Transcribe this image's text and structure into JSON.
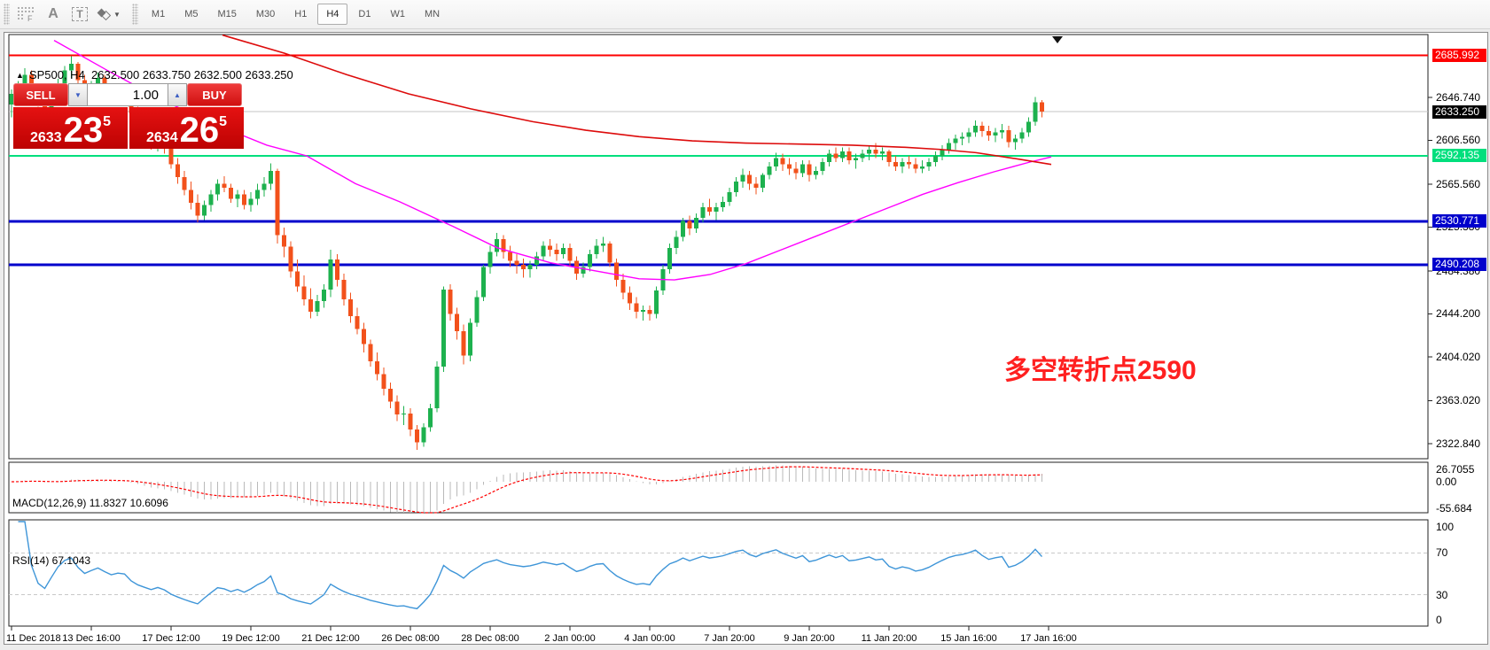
{
  "toolbar": {
    "tools": [
      {
        "name": "figures-grid",
        "letter": "F"
      },
      {
        "name": "label-a",
        "letter": "A"
      },
      {
        "name": "textbox-t",
        "letter": "T"
      },
      {
        "name": "draw-objects",
        "letter": ""
      }
    ],
    "timeframes": [
      "M1",
      "M5",
      "M15",
      "M30",
      "H1",
      "H4",
      "D1",
      "W1",
      "MN"
    ],
    "active_timeframe": "H4"
  },
  "chart": {
    "marker": "▲",
    "symbol": "SP500, H4",
    "ohlc": "2632.500 2633.750 2632.500 2633.250",
    "end_marker": "▼"
  },
  "trade_panel": {
    "sell_label": "SELL",
    "buy_label": "BUY",
    "volume": "1.00",
    "spin_down": "▼",
    "spin_up": "▲",
    "bid_prefix": "2633",
    "bid_big": "23",
    "bid_sup": "5",
    "ask_prefix": "2634",
    "ask_big": "26",
    "ask_sup": "5"
  },
  "annotation": {
    "text": "多空转折点2590",
    "color": "#ff2020"
  },
  "indicators": {
    "macd_label": "MACD(12,26,9) 11.8327 10.6096",
    "rsi_label": "RSI(14) 67.1043",
    "macd_axis": [
      {
        "label": "26.7055",
        "value": 26.7055
      },
      {
        "label": "0.00",
        "value": 0
      },
      {
        "label": "-55.684",
        "value": -55.684
      }
    ],
    "rsi_axis": [
      {
        "label": "100",
        "value": 100
      },
      {
        "label": "70",
        "value": 70
      },
      {
        "label": "30",
        "value": 30
      },
      {
        "label": "0",
        "value": 0
      }
    ],
    "rsi_levels": [
      70,
      30
    ]
  },
  "chart_data": {
    "type": "candlestick",
    "symbol": "SP500",
    "timeframe": "H4",
    "ylim": [
      2309,
      2705
    ],
    "y_ticks": [
      {
        "label": "2646.740",
        "price": 2646.74
      },
      {
        "label": "2606.560",
        "price": 2606.56
      },
      {
        "label": "2565.560",
        "price": 2565.56
      },
      {
        "label": "2525.380",
        "price": 2525.38
      },
      {
        "label": "2484.380",
        "price": 2484.38
      },
      {
        "label": "2444.200",
        "price": 2444.2
      },
      {
        "label": "2404.020",
        "price": 2404.02
      },
      {
        "label": "2363.020",
        "price": 2363.02
      },
      {
        "label": "2322.840",
        "price": 2322.84
      }
    ],
    "badges": [
      {
        "label": "2685.992",
        "price": 2685.992,
        "bg": "#fe0000",
        "fg": "#ffffff"
      },
      {
        "label": "2633.250",
        "price": 2633.25,
        "bg": "#000000",
        "fg": "#ffffff"
      },
      {
        "label": "2592.135",
        "price": 2592.135,
        "bg": "#00df7d",
        "fg": "#ffffff"
      },
      {
        "label": "2530.771",
        "price": 2530.771,
        "bg": "#0000cc",
        "fg": "#ffffff"
      },
      {
        "label": "2490.208",
        "price": 2490.208,
        "bg": "#0000cc",
        "fg": "#ffffff"
      }
    ],
    "hlines": [
      {
        "price": 2685.992,
        "color": "#fe0000",
        "width": 2
      },
      {
        "price": 2592.135,
        "color": "#00df7d",
        "width": 2
      },
      {
        "price": 2530.771,
        "color": "#0000cc",
        "width": 3
      },
      {
        "price": 2490.208,
        "color": "#0000cc",
        "width": 3
      }
    ],
    "current_price_line": {
      "price": 2633.25,
      "color": "#c4c4c4",
      "width": 1
    },
    "time_labels": [
      "11 Dec 2018",
      "13 Dec 16:00",
      "17 Dec 12:00",
      "19 Dec 12:00",
      "21 Dec 12:00",
      "26 Dec 08:00",
      "28 Dec 08:00",
      "2 Jan 00:00",
      "4 Jan 00:00",
      "7 Jan 20:00",
      "9 Jan 20:00",
      "11 Jan 20:00",
      "15 Jan 16:00",
      "17 Jan 16:00"
    ],
    "colors": {
      "up": "#1db14e",
      "down": "#f2511b",
      "ma_red": "#dd0b0b",
      "ma_magenta": "#ff00ff",
      "rsi": "#3e95d8",
      "macd_hist": "#b9b9b9",
      "macd_signal": "#ff0000"
    },
    "ma_red": [
      [
        250,
        2705
      ],
      [
        320,
        2688
      ],
      [
        390,
        2668
      ],
      [
        460,
        2650
      ],
      [
        530,
        2636
      ],
      [
        600,
        2624
      ],
      [
        660,
        2616
      ],
      [
        720,
        2610
      ],
      [
        780,
        2606
      ],
      [
        840,
        2604
      ],
      [
        900,
        2603
      ],
      [
        960,
        2602
      ],
      [
        1020,
        2600
      ],
      [
        1060,
        2598
      ],
      [
        1100,
        2595
      ],
      [
        1140,
        2590
      ],
      [
        1185,
        2584
      ]
    ],
    "ma_magenta": [
      [
        60,
        2700
      ],
      [
        120,
        2672
      ],
      [
        180,
        2645
      ],
      [
        240,
        2622
      ],
      [
        300,
        2602
      ],
      [
        345,
        2592
      ],
      [
        400,
        2566
      ],
      [
        450,
        2549
      ],
      [
        510,
        2526
      ],
      [
        560,
        2506
      ],
      [
        620,
        2492
      ],
      [
        680,
        2483
      ],
      [
        720,
        2477
      ],
      [
        760,
        2476
      ],
      [
        800,
        2481
      ],
      [
        840,
        2491
      ],
      [
        880,
        2504
      ],
      [
        920,
        2517
      ],
      [
        960,
        2530
      ],
      [
        1000,
        2543
      ],
      [
        1040,
        2556
      ],
      [
        1080,
        2567
      ],
      [
        1120,
        2577
      ],
      [
        1160,
        2586
      ],
      [
        1185,
        2591
      ]
    ],
    "candles": [
      [
        2640,
        2654,
        2628,
        2650
      ],
      [
        2650,
        2662,
        2644,
        2658
      ],
      [
        2658,
        2674,
        2652,
        2668
      ],
      [
        2668,
        2672,
        2650,
        2655
      ],
      [
        2655,
        2660,
        2638,
        2642
      ],
      [
        2642,
        2648,
        2630,
        2636
      ],
      [
        2636,
        2650,
        2632,
        2646
      ],
      [
        2646,
        2664,
        2642,
        2660
      ],
      [
        2660,
        2676,
        2655,
        2672
      ],
      [
        2672,
        2685,
        2665,
        2678
      ],
      [
        2678,
        2680,
        2658,
        2663
      ],
      [
        2663,
        2668,
        2648,
        2651
      ],
      [
        2651,
        2662,
        2645,
        2658
      ],
      [
        2658,
        2670,
        2652,
        2665
      ],
      [
        2665,
        2668,
        2652,
        2656
      ],
      [
        2656,
        2660,
        2644,
        2648
      ],
      [
        2648,
        2656,
        2642,
        2652
      ],
      [
        2652,
        2658,
        2645,
        2650
      ],
      [
        2650,
        2652,
        2628,
        2632
      ],
      [
        2632,
        2638,
        2615,
        2620
      ],
      [
        2620,
        2628,
        2608,
        2612
      ],
      [
        2612,
        2618,
        2598,
        2604
      ],
      [
        2604,
        2612,
        2596,
        2608
      ],
      [
        2608,
        2612,
        2594,
        2600
      ],
      [
        2600,
        2604,
        2580,
        2584
      ],
      [
        2584,
        2590,
        2566,
        2572
      ],
      [
        2572,
        2578,
        2555,
        2560
      ],
      [
        2560,
        2568,
        2542,
        2548
      ],
      [
        2548,
        2556,
        2530,
        2536
      ],
      [
        2536,
        2550,
        2532,
        2546
      ],
      [
        2546,
        2560,
        2540,
        2556
      ],
      [
        2556,
        2570,
        2550,
        2566
      ],
      [
        2566,
        2573,
        2558,
        2562
      ],
      [
        2562,
        2566,
        2548,
        2552
      ],
      [
        2552,
        2560,
        2544,
        2556
      ],
      [
        2556,
        2560,
        2542,
        2546
      ],
      [
        2546,
        2558,
        2540,
        2552
      ],
      [
        2552,
        2566,
        2546,
        2560
      ],
      [
        2560,
        2572,
        2554,
        2566
      ],
      [
        2566,
        2585,
        2560,
        2578
      ],
      [
        2578,
        2580,
        2510,
        2518
      ],
      [
        2518,
        2525,
        2497,
        2507
      ],
      [
        2507,
        2512,
        2478,
        2484
      ],
      [
        2484,
        2495,
        2465,
        2470
      ],
      [
        2470,
        2480,
        2452,
        2458
      ],
      [
        2458,
        2468,
        2440,
        2446
      ],
      [
        2446,
        2462,
        2442,
        2456
      ],
      [
        2456,
        2472,
        2450,
        2467
      ],
      [
        2467,
        2504,
        2460,
        2495
      ],
      [
        2495,
        2500,
        2470,
        2476
      ],
      [
        2476,
        2482,
        2452,
        2458
      ],
      [
        2458,
        2464,
        2436,
        2442
      ],
      [
        2442,
        2450,
        2425,
        2430
      ],
      [
        2430,
        2436,
        2408,
        2416
      ],
      [
        2416,
        2420,
        2395,
        2400
      ],
      [
        2400,
        2408,
        2382,
        2388
      ],
      [
        2388,
        2394,
        2368,
        2374
      ],
      [
        2374,
        2380,
        2356,
        2362
      ],
      [
        2362,
        2368,
        2344,
        2350
      ],
      [
        2350,
        2358,
        2340,
        2351
      ],
      [
        2351,
        2356,
        2330,
        2336
      ],
      [
        2336,
        2340,
        2317,
        2324
      ],
      [
        2324,
        2342,
        2320,
        2338
      ],
      [
        2338,
        2360,
        2334,
        2356
      ],
      [
        2356,
        2400,
        2352,
        2395
      ],
      [
        2395,
        2470,
        2390,
        2467
      ],
      [
        2467,
        2472,
        2438,
        2444
      ],
      [
        2444,
        2450,
        2420,
        2428
      ],
      [
        2428,
        2434,
        2397,
        2405
      ],
      [
        2405,
        2440,
        2400,
        2436
      ],
      [
        2436,
        2466,
        2432,
        2460
      ],
      [
        2460,
        2490,
        2456,
        2488
      ],
      [
        2488,
        2508,
        2482,
        2502
      ],
      [
        2502,
        2520,
        2498,
        2514
      ],
      [
        2514,
        2518,
        2496,
        2502
      ],
      [
        2502,
        2508,
        2488,
        2494
      ],
      [
        2494,
        2500,
        2482,
        2490
      ],
      [
        2490,
        2496,
        2478,
        2486
      ],
      [
        2486,
        2494,
        2478,
        2490
      ],
      [
        2490,
        2502,
        2486,
        2498
      ],
      [
        2498,
        2512,
        2494,
        2508
      ],
      [
        2508,
        2514,
        2498,
        2504
      ],
      [
        2504,
        2510,
        2494,
        2500
      ],
      [
        2500,
        2510,
        2496,
        2506
      ],
      [
        2506,
        2510,
        2488,
        2494
      ],
      [
        2494,
        2498,
        2476,
        2482
      ],
      [
        2482,
        2492,
        2478,
        2488
      ],
      [
        2488,
        2504,
        2484,
        2500
      ],
      [
        2500,
        2514,
        2496,
        2508
      ],
      [
        2508,
        2516,
        2502,
        2510
      ],
      [
        2510,
        2512,
        2488,
        2492
      ],
      [
        2492,
        2496,
        2470,
        2476
      ],
      [
        2476,
        2482,
        2458,
        2464
      ],
      [
        2464,
        2470,
        2448,
        2454
      ],
      [
        2454,
        2460,
        2440,
        2446
      ],
      [
        2446,
        2452,
        2438,
        2448
      ],
      [
        2448,
        2452,
        2438,
        2444
      ],
      [
        2444,
        2470,
        2440,
        2466
      ],
      [
        2466,
        2490,
        2462,
        2486
      ],
      [
        2486,
        2510,
        2482,
        2506
      ],
      [
        2506,
        2522,
        2500,
        2516
      ],
      [
        2516,
        2534,
        2512,
        2531
      ],
      [
        2531,
        2536,
        2518,
        2524
      ],
      [
        2524,
        2538,
        2520,
        2534
      ],
      [
        2534,
        2548,
        2530,
        2544
      ],
      [
        2544,
        2552,
        2536,
        2540
      ],
      [
        2540,
        2548,
        2532,
        2544
      ],
      [
        2544,
        2554,
        2540,
        2549
      ],
      [
        2549,
        2562,
        2545,
        2558
      ],
      [
        2558,
        2572,
        2554,
        2568
      ],
      [
        2568,
        2580,
        2562,
        2574
      ],
      [
        2574,
        2578,
        2560,
        2566
      ],
      [
        2566,
        2572,
        2556,
        2562
      ],
      [
        2562,
        2576,
        2558,
        2574
      ],
      [
        2574,
        2586,
        2570,
        2582
      ],
      [
        2582,
        2595,
        2578,
        2590
      ],
      [
        2590,
        2594,
        2578,
        2584
      ],
      [
        2584,
        2590,
        2574,
        2580
      ],
      [
        2580,
        2586,
        2570,
        2576
      ],
      [
        2576,
        2588,
        2572,
        2584
      ],
      [
        2584,
        2588,
        2568,
        2574
      ],
      [
        2574,
        2582,
        2570,
        2578
      ],
      [
        2578,
        2590,
        2574,
        2586
      ],
      [
        2586,
        2598,
        2582,
        2594
      ],
      [
        2594,
        2600,
        2586,
        2590
      ],
      [
        2590,
        2600,
        2586,
        2596
      ],
      [
        2596,
        2600,
        2584,
        2588
      ],
      [
        2588,
        2594,
        2580,
        2590
      ],
      [
        2590,
        2598,
        2586,
        2594
      ],
      [
        2594,
        2602,
        2588,
        2598
      ],
      [
        2598,
        2604,
        2590,
        2594
      ],
      [
        2594,
        2600,
        2588,
        2596
      ],
      [
        2596,
        2598,
        2582,
        2586
      ],
      [
        2586,
        2592,
        2578,
        2582
      ],
      [
        2582,
        2590,
        2576,
        2586
      ],
      [
        2586,
        2592,
        2580,
        2584
      ],
      [
        2584,
        2590,
        2576,
        2580
      ],
      [
        2580,
        2588,
        2576,
        2582
      ],
      [
        2582,
        2590,
        2578,
        2586
      ],
      [
        2586,
        2596,
        2582,
        2592
      ],
      [
        2592,
        2602,
        2588,
        2598
      ],
      [
        2598,
        2608,
        2594,
        2604
      ],
      [
        2604,
        2612,
        2598,
        2608
      ],
      [
        2608,
        2614,
        2602,
        2610
      ],
      [
        2610,
        2618,
        2604,
        2614
      ],
      [
        2614,
        2625,
        2610,
        2620
      ],
      [
        2620,
        2624,
        2610,
        2615
      ],
      [
        2615,
        2620,
        2606,
        2611
      ],
      [
        2611,
        2618,
        2605,
        2614
      ],
      [
        2614,
        2622,
        2608,
        2616
      ],
      [
        2616,
        2620,
        2600,
        2605
      ],
      [
        2605,
        2612,
        2598,
        2608
      ],
      [
        2608,
        2618,
        2604,
        2614
      ],
      [
        2614,
        2628,
        2610,
        2624
      ],
      [
        2624,
        2647,
        2620,
        2642
      ],
      [
        2642,
        2644,
        2628,
        2633.25
      ]
    ]
  }
}
